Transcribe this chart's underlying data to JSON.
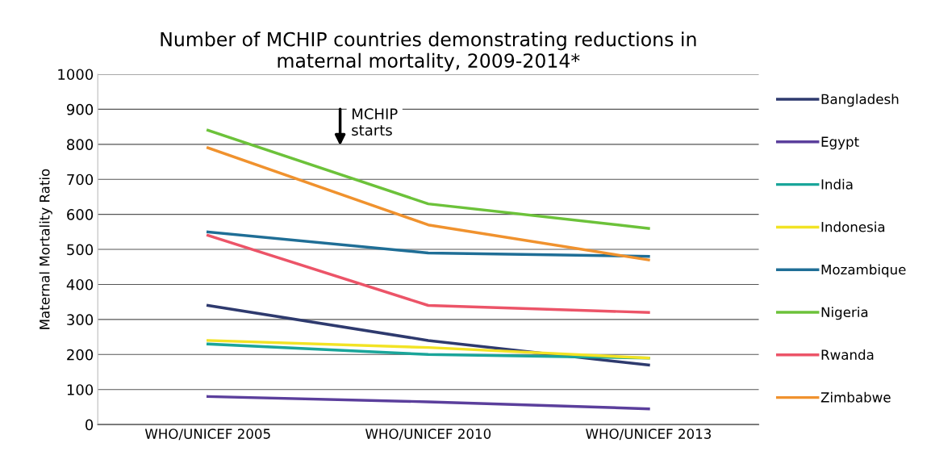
{
  "chart_data": {
    "type": "line",
    "title": "Number of MCHIP countries demonstrating reductions in\nmaternal mortality, 2009-2014*",
    "ylabel": "Maternal Mortality Ratio",
    "categories": [
      "WHO/UNICEF 2005",
      "WHO/UNICEF 2010",
      "WHO/UNICEF 2013"
    ],
    "series": [
      {
        "name": "Bangladesh",
        "color": "#2e3a6e",
        "values": [
          340,
          240,
          170
        ]
      },
      {
        "name": "Egypt",
        "color": "#5b3f9c",
        "values": [
          80,
          65,
          45
        ]
      },
      {
        "name": "India",
        "color": "#1aa59a",
        "values": [
          230,
          200,
          190
        ]
      },
      {
        "name": "Indonesia",
        "color": "#f2e324",
        "values": [
          240,
          220,
          190
        ]
      },
      {
        "name": "Mozambique",
        "color": "#1f6e96",
        "values": [
          550,
          490,
          480
        ]
      },
      {
        "name": "Nigeria",
        "color": "#6cc23a",
        "values": [
          840,
          630,
          560
        ]
      },
      {
        "name": "Rwanda",
        "color": "#ec5468",
        "values": [
          540,
          340,
          320
        ]
      },
      {
        "name": "Zimbabwe",
        "color": "#f0922e",
        "values": [
          790,
          570,
          470
        ]
      }
    ],
    "ylim": [
      0,
      1000
    ],
    "yticks": [
      0,
      100,
      200,
      300,
      400,
      500,
      600,
      700,
      800,
      900,
      1000
    ],
    "grid": "y",
    "legend": "right",
    "marker": "none",
    "line_style": "solid",
    "annotations": [
      "MCHIP\nstarts"
    ]
  }
}
